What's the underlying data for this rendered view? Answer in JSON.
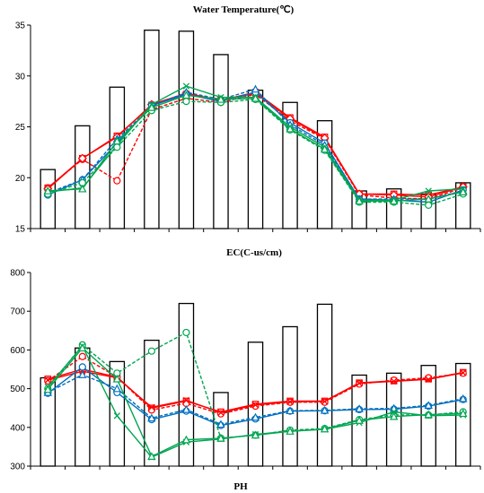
{
  "chart_data": [
    {
      "type": "bar+line",
      "title": "Water Temperature(℃)",
      "xlabel": "",
      "ylabel": "",
      "ylim": [
        15,
        35
      ],
      "yticks": [
        "15",
        "20",
        "25",
        "30",
        "35"
      ],
      "grid": false,
      "n_points": 13,
      "bars": [
        20.8,
        25.1,
        28.9,
        34.5,
        34.4,
        32.1,
        28.6,
        27.4,
        25.6,
        18.7,
        18.9,
        18.4,
        19.5
      ],
      "series": [
        {
          "marker": "square",
          "color": "#ff0000",
          "dash": "solid",
          "values": [
            19.0,
            21.9,
            24.1,
            27.1,
            28.2,
            27.6,
            28.4,
            25.9,
            24.0,
            18.4,
            18.4,
            18.3,
            19.1
          ]
        },
        {
          "marker": "circle",
          "color": "#ff0000",
          "dash": "dashed",
          "values": [
            19.0,
            21.8,
            19.7,
            26.7,
            27.8,
            27.4,
            28.2,
            25.6,
            23.8,
            18.3,
            18.0,
            17.9,
            19.0
          ]
        },
        {
          "marker": "diamond",
          "color": "#ff0000",
          "dash": "solid",
          "values": [
            18.9,
            21.9,
            24.0,
            27.2,
            28.3,
            27.6,
            28.3,
            25.8,
            23.9,
            18.4,
            18.3,
            18.1,
            19.1
          ]
        },
        {
          "marker": "circle",
          "color": "#0070c0",
          "dash": "solid",
          "values": [
            18.3,
            19.8,
            23.4,
            27.1,
            28.2,
            27.5,
            28.4,
            25.4,
            23.4,
            17.9,
            17.8,
            17.6,
            18.8
          ]
        },
        {
          "marker": "triangle",
          "color": "#0070c0",
          "dash": "dashed",
          "values": [
            18.5,
            19.8,
            23.8,
            27.0,
            28.4,
            27.7,
            28.7,
            25.2,
            23.2,
            17.9,
            17.9,
            17.9,
            18.7
          ]
        },
        {
          "marker": "cross",
          "color": "#00a651",
          "dash": "solid",
          "values": [
            18.6,
            19.0,
            23.2,
            27.2,
            29.0,
            27.9,
            27.9,
            25.0,
            23.0,
            17.8,
            17.8,
            18.7,
            18.9
          ]
        },
        {
          "marker": "circle",
          "color": "#00a651",
          "dash": "dashed",
          "values": [
            18.4,
            19.5,
            23.0,
            26.6,
            27.5,
            27.4,
            27.7,
            24.7,
            22.7,
            17.6,
            17.6,
            17.3,
            18.4
          ]
        },
        {
          "marker": "triangle",
          "color": "#00a651",
          "dash": "solid",
          "values": [
            18.7,
            18.9,
            23.6,
            26.9,
            28.1,
            27.7,
            27.8,
            24.8,
            22.8,
            17.7,
            17.7,
            17.9,
            18.6
          ]
        }
      ]
    },
    {
      "type": "bar+line",
      "title": "EC(C-us/cm)",
      "xlabel": "",
      "ylabel": "",
      "ylim": [
        300,
        800
      ],
      "yticks": [
        "300",
        "400",
        "500",
        "600",
        "700",
        "800"
      ],
      "grid": false,
      "n_points": 13,
      "bars": [
        528,
        605,
        570,
        625,
        720,
        490,
        620,
        660,
        718,
        535,
        540,
        560,
        565
      ],
      "series": [
        {
          "marker": "square",
          "color": "#ff0000",
          "dash": "solid",
          "values": [
            525,
            550,
            530,
            450,
            468,
            440,
            460,
            468,
            468,
            515,
            520,
            525,
            542
          ]
        },
        {
          "marker": "circle",
          "color": "#ff0000",
          "dash": "dashed",
          "values": [
            520,
            583,
            530,
            445,
            462,
            435,
            455,
            465,
            465,
            512,
            522,
            528,
            540
          ]
        },
        {
          "marker": "cross",
          "color": "#ff0000",
          "dash": "solid",
          "values": [
            522,
            545,
            528,
            452,
            470,
            438,
            458,
            466,
            467,
            514,
            519,
            524,
            541
          ]
        },
        {
          "marker": "circle",
          "color": "#0070c0",
          "dash": "solid",
          "values": [
            488,
            556,
            490,
            420,
            442,
            405,
            422,
            442,
            443,
            446,
            447,
            455,
            472
          ]
        },
        {
          "marker": "triangle",
          "color": "#0070c0",
          "dash": "dashed",
          "values": [
            490,
            536,
            500,
            424,
            446,
            408,
            426,
            443,
            444,
            448,
            449,
            457,
            474
          ]
        },
        {
          "marker": "circle",
          "color": "#00a651",
          "dash": "dashed",
          "values": [
            500,
            613,
            540,
            597,
            645,
            372,
            380,
            393,
            397,
            420,
            432,
            432,
            440
          ]
        },
        {
          "marker": "cross",
          "color": "#00a651",
          "dash": "solid",
          "values": [
            505,
            610,
            430,
            323,
            362,
            370,
            382,
            390,
            395,
            412,
            440,
            430,
            432
          ]
        },
        {
          "marker": "triangle",
          "color": "#00a651",
          "dash": "solid",
          "values": [
            498,
            605,
            525,
            325,
            368,
            372,
            380,
            390,
            396,
            418,
            428,
            433,
            436
          ]
        }
      ]
    }
  ],
  "third_panel_title": "PH"
}
